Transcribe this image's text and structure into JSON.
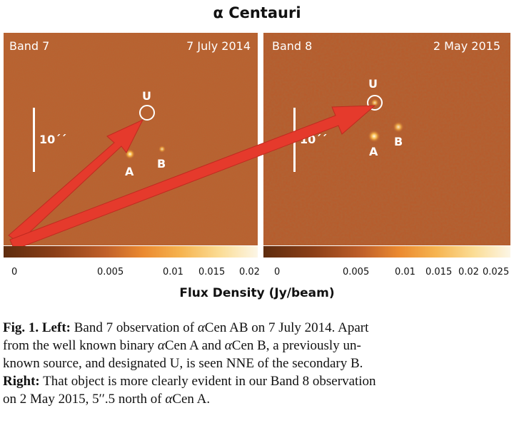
{
  "figure": {
    "title": "α Centauri",
    "left_panel": {
      "band": "Band 7",
      "date": "7 July 2014",
      "scale": "10´´",
      "source_u": "U",
      "source_a": "A",
      "source_b": "B"
    },
    "right_panel": {
      "band": "Band 8",
      "date": "2 May 2015",
      "scale": "10´´",
      "source_u": "U",
      "source_a": "A",
      "source_b": "B"
    },
    "colorbar_left_ticks": [
      "0",
      "0.005",
      "0.01",
      "0.015",
      "0.02"
    ],
    "colorbar_right_ticks": [
      "0",
      "0.005",
      "0.01",
      "0.015",
      "0.02",
      "0.025"
    ],
    "colorbar_label": "Flux Density (Jy/beam)",
    "colors": {
      "map_dark": "#b85a2a",
      "map_mid": "#c06a32",
      "arrow": "#e53a2c",
      "colorbar_start": "#5e2c0e",
      "colorbar_end": "#fcf6e6"
    }
  },
  "caption": {
    "line1_bold": "Fig. 1. Left:",
    "line1_text": " Band 7 observation of ",
    "alpha": "α",
    "line1_cen": "Cen AB on 7 July 2014. Apart",
    "line2": "from the well known binary ",
    "line2_cena": "Cen A and ",
    "line2_cenb": "Cen B, a previously un-",
    "line3": "known source, and designated U, is seen NNE of the secondary B.",
    "line4_bold": "Right:",
    "line4_text": " That object is more clearly evident in our Band 8 observation",
    "line5": "on 2 May 2015, 5′′.5 north of ",
    "line5_cena": "Cen A."
  }
}
